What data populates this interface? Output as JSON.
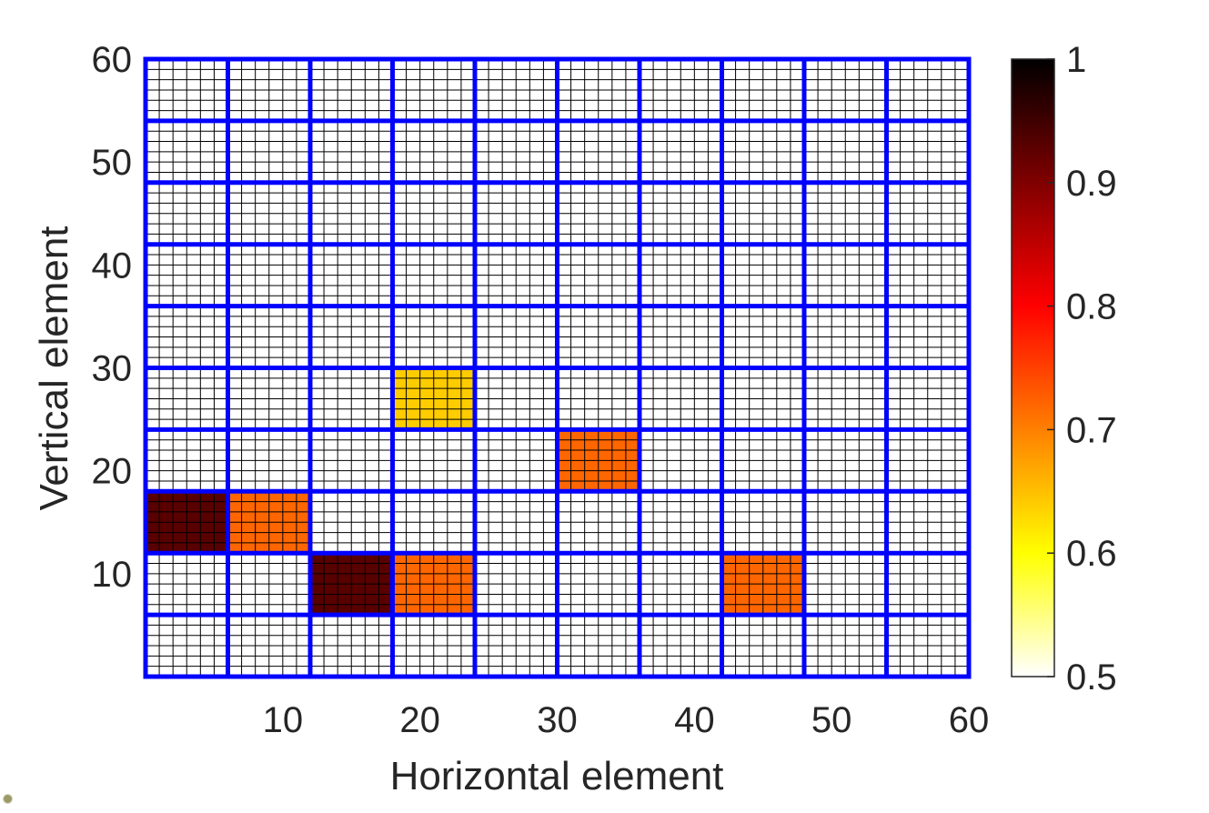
{
  "chart_data": {
    "type": "heatmap",
    "title": "",
    "xlabel": "Horizontal element",
    "ylabel": "Vertical element",
    "xlim": [
      0,
      60
    ],
    "ylim": [
      0,
      60
    ],
    "x_ticks": [
      10,
      20,
      30,
      40,
      50,
      60
    ],
    "y_ticks": [
      10,
      20,
      30,
      40,
      50,
      60
    ],
    "x_tick_labels": [
      "10",
      "20",
      "30",
      "40",
      "50",
      "60"
    ],
    "y_tick_labels": [
      "10",
      "20",
      "30",
      "40",
      "50",
      "60"
    ],
    "fine_grid_spacing": 1,
    "block_width": 6,
    "block_height": 6,
    "block_grid_color": "#0000ff",
    "fine_grid_color": "#000000",
    "default_value": 0.5,
    "highlighted_blocks": [
      {
        "x": [
          0,
          6
        ],
        "y": [
          12,
          18
        ],
        "value": 0.93
      },
      {
        "x": [
          6,
          12
        ],
        "y": [
          12,
          18
        ],
        "value": 0.72
      },
      {
        "x": [
          12,
          18
        ],
        "y": [
          6,
          12
        ],
        "value": 0.93
      },
      {
        "x": [
          18,
          24
        ],
        "y": [
          6,
          12
        ],
        "value": 0.72
      },
      {
        "x": [
          18,
          24
        ],
        "y": [
          24,
          30
        ],
        "value": 0.64
      },
      {
        "x": [
          30,
          36
        ],
        "y": [
          18,
          24
        ],
        "value": 0.72
      },
      {
        "x": [
          42,
          48
        ],
        "y": [
          6,
          12
        ],
        "value": 0.72
      }
    ],
    "colorbar": {
      "colormap": "hot",
      "range": [
        0.5,
        1
      ],
      "ticks": [
        0.5,
        0.6,
        0.7,
        0.8,
        0.9,
        1
      ],
      "tick_labels": [
        "0.5",
        "0.6",
        "0.7",
        "0.8",
        "0.9",
        "1"
      ]
    }
  }
}
